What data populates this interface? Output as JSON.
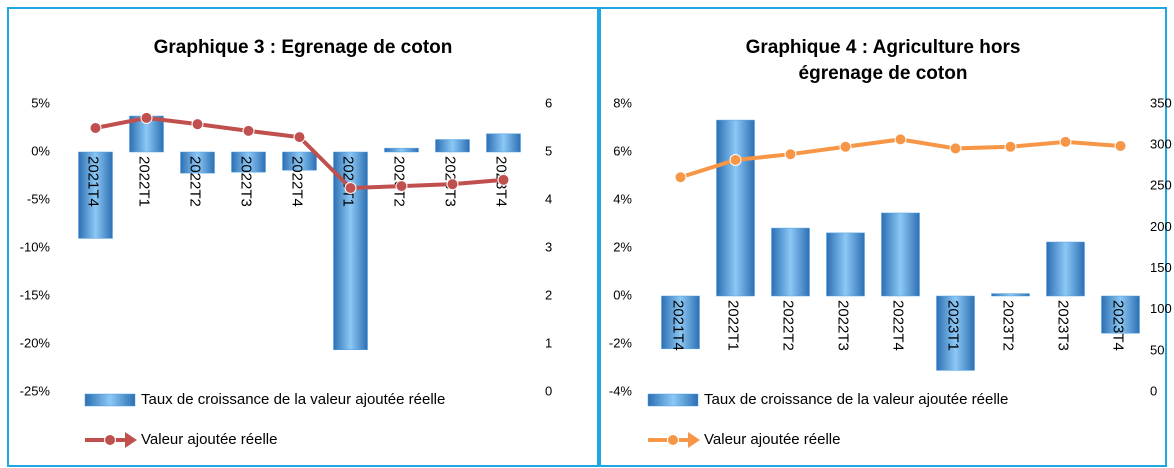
{
  "chart_data": [
    {
      "type": "bar",
      "title": [
        "Graphique 3 : Egrenage de coton"
      ],
      "categories": [
        "2021T4",
        "2022T1",
        "2022T2",
        "2022T3",
        "2022T4",
        "2023T1",
        "2023T2",
        "2023T3",
        "2023T4"
      ],
      "series": [
        {
          "name": "Taux de croissance de la valeur ajoutée réelle",
          "type": "bar",
          "color": "#4f9fe0",
          "values": [
            -9.0,
            3.75,
            -2.2,
            -2.1,
            -1.9,
            -20.6,
            0.4,
            1.3,
            1.9
          ]
        },
        {
          "name": "Valeur ajoutée réelle",
          "type": "line",
          "axis": "y2",
          "color": "#c0504d",
          "values": [
            5.5,
            5.71,
            5.58,
            5.44,
            5.31,
            4.25,
            4.29,
            4.33,
            4.42
          ]
        }
      ],
      "ylim": [
        -25,
        5
      ],
      "yticks": [
        {
          "value": -25,
          "label": "-25%"
        },
        {
          "value": -20,
          "label": "-20%"
        },
        {
          "value": -15,
          "label": "-15%"
        },
        {
          "value": -10,
          "label": "-10%"
        },
        {
          "value": -5,
          "label": "-5%"
        },
        {
          "value": 0,
          "label": "0%"
        },
        {
          "value": 5,
          "label": "5%"
        }
      ],
      "y2lim": [
        0,
        6
      ],
      "y2ticks": [
        0,
        1,
        2,
        3,
        4,
        5,
        6
      ]
    },
    {
      "type": "bar",
      "title": [
        "Graphique 4 : Agriculture hors",
        "égrenage de coton"
      ],
      "categories": [
        "2021T4",
        "2022T1",
        "2022T2",
        "2022T3",
        "2022T4",
        "2023T1",
        "2023T2",
        "2023T3",
        "2023T4"
      ],
      "series": [
        {
          "name": "Taux de croissance de la valeur ajoutée réelle",
          "type": "bar",
          "color": "#4f9fe0",
          "values": [
            -2.2,
            7.33,
            2.83,
            2.63,
            3.46,
            -3.1,
            0.1,
            2.25,
            -1.55
          ]
        },
        {
          "name": "Valeur ajoutée réelle",
          "type": "line",
          "axis": "y2",
          "color": "#f79646",
          "values": [
            261,
            282,
            289,
            298,
            307,
            296,
            298,
            304,
            299
          ]
        }
      ],
      "ylim": [
        -4,
        8
      ],
      "yticks": [
        {
          "value": -4,
          "label": "-4%"
        },
        {
          "value": -2,
          "label": "-2%"
        },
        {
          "value": 0,
          "label": "0%"
        },
        {
          "value": 2,
          "label": "2%"
        },
        {
          "value": 4,
          "label": "4%"
        },
        {
          "value": 6,
          "label": "6%"
        },
        {
          "value": 8,
          "label": "8%"
        }
      ],
      "y2lim": [
        0,
        350
      ],
      "y2ticks": [
        0,
        50,
        100,
        150,
        200,
        250,
        300,
        350
      ]
    }
  ]
}
